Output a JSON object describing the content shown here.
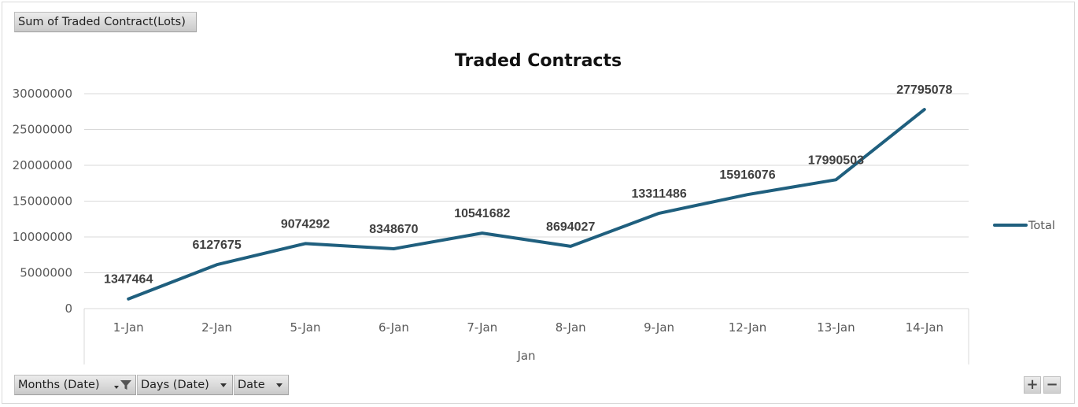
{
  "pivot": {
    "value_field_label": "Sum of Traded Contract(Lots)",
    "axis_fields": [
      {
        "label": "Months (Date)",
        "filtered": true
      },
      {
        "label": "Days (Date)",
        "filtered": false
      },
      {
        "label": "Date",
        "filtered": false
      }
    ],
    "zoom_in_label": "+",
    "zoom_out_label": "−"
  },
  "chart_data": {
    "type": "line",
    "title": "Traded Contracts",
    "categories": [
      "1-Jan",
      "2-Jan",
      "5-Jan",
      "6-Jan",
      "7-Jan",
      "8-Jan",
      "9-Jan",
      "12-Jan",
      "13-Jan",
      "14-Jan"
    ],
    "group_label": "Jan",
    "series": [
      {
        "name": "Total",
        "values": [
          1347464,
          6127675,
          9074292,
          8348670,
          10541682,
          8694027,
          13311486,
          15916076,
          17990503,
          27795078
        ],
        "color": "#1f5f7e"
      }
    ],
    "data_labels": [
      "1347464",
      "6127675",
      "9074292",
      "8348670",
      "10541682",
      "8694027",
      "13311486",
      "15916076",
      "17990503",
      "27795078"
    ],
    "y_ticks": [
      "0",
      "5000000",
      "10000000",
      "15000000",
      "20000000",
      "25000000",
      "30000000"
    ],
    "ylim": [
      0,
      30000000
    ],
    "grid": true,
    "legend_position": "right"
  }
}
